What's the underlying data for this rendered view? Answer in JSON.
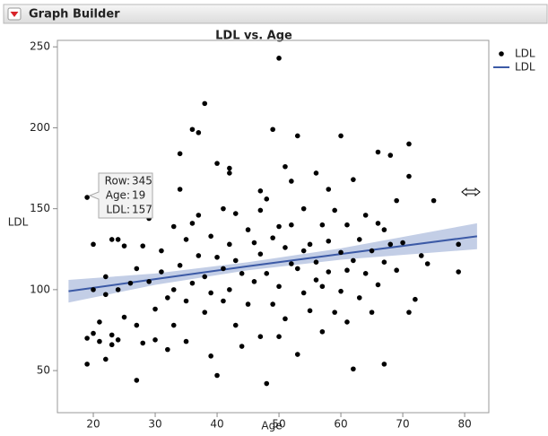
{
  "header": {
    "title": "Graph Builder"
  },
  "chart_data": {
    "type": "scatter",
    "title": "LDL vs. Age",
    "x_label": "Age",
    "y_label": "LDL",
    "xlim": [
      14.2,
      83.9
    ],
    "ylim": [
      24,
      254
    ],
    "xticks": [
      20,
      30,
      40,
      50,
      60,
      70,
      80
    ],
    "yticks": [
      50,
      100,
      150,
      200,
      250
    ],
    "x": [
      19,
      19,
      19,
      20,
      20,
      20,
      21,
      21,
      22,
      22,
      22,
      23,
      23,
      23,
      24,
      24,
      24,
      25,
      25,
      26,
      27,
      27,
      27,
      28,
      28,
      29,
      29,
      30,
      30,
      31,
      31,
      32,
      32,
      33,
      33,
      33,
      34,
      34,
      34,
      35,
      35,
      35,
      36,
      36,
      36,
      37,
      37,
      37,
      38,
      38,
      38,
      39,
      39,
      39,
      40,
      40,
      40,
      41,
      41,
      41,
      42,
      42,
      42,
      42,
      43,
      43,
      43,
      44,
      44,
      45,
      45,
      46,
      46,
      47,
      47,
      47,
      47,
      48,
      48,
      48,
      49,
      49,
      49,
      50,
      50,
      50,
      50,
      51,
      51,
      51,
      52,
      52,
      52,
      53,
      53,
      53,
      54,
      54,
      54,
      55,
      55,
      56,
      56,
      56,
      57,
      57,
      57,
      58,
      58,
      58,
      59,
      59,
      60,
      60,
      60,
      61,
      61,
      61,
      62,
      62,
      62,
      63,
      63,
      64,
      64,
      65,
      65,
      66,
      66,
      66,
      67,
      67,
      67,
      68,
      68,
      69,
      69,
      70,
      71,
      71,
      71,
      72,
      73,
      74,
      75,
      79,
      79
    ],
    "series": [
      {
        "name": "LDL",
        "color": "#000000",
        "values": [
          54,
          70,
          157,
          100,
          128,
          73,
          68,
          80,
          57,
          108,
          97,
          131,
          72,
          66,
          131,
          69,
          100,
          83,
          127,
          104,
          44,
          113,
          78,
          127,
          67,
          144,
          105,
          69,
          88,
          124,
          111,
          95,
          63,
          139,
          100,
          78,
          184,
          162,
          115,
          131,
          93,
          68,
          199,
          141,
          104,
          197,
          146,
          121,
          215,
          108,
          86,
          133,
          98,
          59,
          178,
          120,
          47,
          150,
          113,
          93,
          175,
          172,
          128,
          100,
          147,
          118,
          78,
          110,
          65,
          137,
          91,
          129,
          105,
          161,
          149,
          122,
          71,
          42,
          156,
          110,
          199,
          132,
          91,
          243,
          139,
          102,
          71,
          176,
          126,
          82,
          167,
          140,
          116,
          195,
          113,
          60,
          150,
          124,
          98,
          128,
          87,
          172,
          117,
          106,
          140,
          102,
          74,
          162,
          130,
          111,
          149,
          86,
          195,
          123,
          99,
          140,
          112,
          80,
          168,
          51,
          118,
          131,
          95,
          146,
          110,
          124,
          86,
          185,
          141,
          103,
          137,
          117,
          54,
          183,
          128,
          155,
          112,
          129,
          190,
          86,
          170,
          94,
          121,
          116,
          155,
          111,
          128
        ]
      },
      {
        "name": "LDL",
        "type": "line",
        "color": "#3c5aa6",
        "band_color": "#c3cee6",
        "x": [
          16,
          30,
          45,
          60,
          82
        ],
        "values": [
          99,
          106.5,
          114.5,
          122,
          133
        ],
        "upper": [
          106,
          110,
          117,
          125.5,
          141
        ],
        "lower": [
          92,
          103,
          112,
          118.5,
          125
        ]
      }
    ],
    "tooltip": [
      {
        "label": "Row:",
        "value": 345
      },
      {
        "label": "Age:",
        "value": 19
      },
      {
        "label": "LDL:",
        "value": 157
      }
    ]
  }
}
